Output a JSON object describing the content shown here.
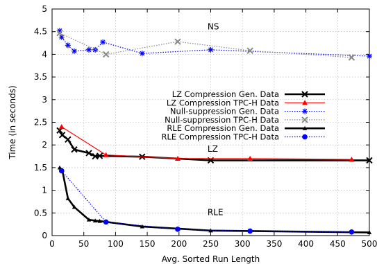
{
  "chart_data": {
    "type": "line",
    "title": "",
    "xlabel": "Avg. Sorted Run Length",
    "ylabel": "Time (in seconds)",
    "xlim": [
      0,
      500
    ],
    "ylim": [
      0,
      5
    ],
    "xticks": [
      0,
      50,
      100,
      150,
      200,
      250,
      300,
      350,
      400,
      450,
      500
    ],
    "yticks": [
      0,
      0.5,
      1,
      1.5,
      2,
      2.5,
      3,
      3.5,
      4,
      4.5,
      5
    ],
    "xtick_labels": [
      "0",
      "50",
      "100",
      "150",
      "200",
      "250",
      "300",
      "350",
      "400",
      "450",
      "500"
    ],
    "ytick_labels": [
      "0",
      "0.5",
      "1",
      "1.5",
      "2",
      "2.5",
      "3",
      "3.5",
      "4",
      "4.5",
      "5"
    ],
    "grid": true,
    "legend_position": "center-right",
    "annotations": [
      {
        "text": "NS",
        "x": 245,
        "y": 4.55
      },
      {
        "text": "LZ",
        "x": 245,
        "y": 1.85
      },
      {
        "text": "RLE",
        "x": 245,
        "y": 0.45
      }
    ],
    "series": [
      {
        "name": "LZ Compression Gen. Data",
        "color": "#000000",
        "line": "solid",
        "marker": "x",
        "x": [
          12,
          16,
          25,
          35,
          58,
          68,
          75,
          142,
          250,
          500
        ],
        "y": [
          2.32,
          2.22,
          2.12,
          1.9,
          1.82,
          1.75,
          1.76,
          1.74,
          1.66,
          1.66
        ]
      },
      {
        "name": "LZ Compression TPC-H Data",
        "color": "#ff0000",
        "line": "solid",
        "marker": "triangle",
        "x": [
          15,
          85,
          198,
          312,
          472
        ],
        "y": [
          2.4,
          1.78,
          1.7,
          1.7,
          1.68
        ]
      },
      {
        "name": "Null-suppression Gen. Data",
        "color": "#0000ff",
        "line": "dotted",
        "marker": "star",
        "x": [
          12,
          15,
          25,
          35,
          58,
          68,
          80,
          142,
          250,
          500
        ],
        "y": [
          4.52,
          4.38,
          4.2,
          4.07,
          4.1,
          4.1,
          4.27,
          4.02,
          4.1,
          3.96
        ]
      },
      {
        "name": "Null-suppression TPC-H Data",
        "color": "#888888",
        "line": "dotted",
        "marker": "x",
        "x": [
          12,
          85,
          198,
          312,
          472
        ],
        "y": [
          4.47,
          4.0,
          4.28,
          4.08,
          3.93
        ]
      },
      {
        "name": "RLE Compression Gen. Data",
        "color": "#000000",
        "line": "solid",
        "marker": "small-triangle",
        "x": [
          12,
          16,
          25,
          35,
          58,
          68,
          75,
          142,
          250,
          500
        ],
        "y": [
          1.5,
          1.45,
          0.82,
          0.63,
          0.35,
          0.33,
          0.32,
          0.2,
          0.11,
          0.07
        ]
      },
      {
        "name": "RLE Compression TPC-H Data",
        "color": "#0000ff",
        "line": "dotted",
        "marker": "circle",
        "x": [
          15,
          85,
          198,
          312,
          472
        ],
        "y": [
          1.43,
          0.3,
          0.14,
          0.1,
          0.08
        ]
      }
    ]
  }
}
